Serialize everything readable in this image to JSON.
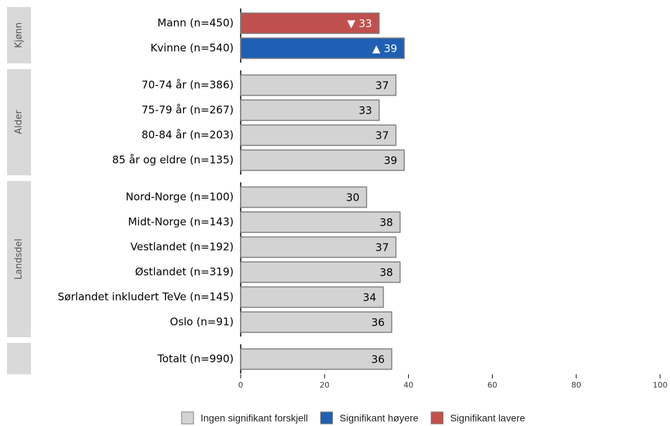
{
  "chart_data": {
    "type": "bar",
    "orientation": "horizontal",
    "groups": [
      {
        "label": "Kjønn",
        "categories": [
          "Mann (n=450)",
          "Kvinne (n=540)"
        ],
        "values": [
          33,
          39
        ],
        "value_labels": [
          "▼ 33",
          "▲ 39"
        ],
        "colors": [
          "#c0504d",
          "#1f5fb4"
        ]
      },
      {
        "label": "Alder",
        "categories": [
          "70-74 år (n=386)",
          "75-79 år (n=267)",
          "80-84 år (n=203)",
          "85 år og eldre (n=135)"
        ],
        "values": [
          37,
          33,
          37,
          39
        ],
        "value_labels": [
          "37",
          "33",
          "37",
          "39"
        ],
        "colors": [
          "#d3d3d3",
          "#d3d3d3",
          "#d3d3d3",
          "#d3d3d3"
        ]
      },
      {
        "label": "Landsdel",
        "categories": [
          "Nord-Norge (n=100)",
          "Midt-Norge (n=143)",
          "Vestlandet (n=192)",
          "Østlandet (n=319)",
          "Sørlandet inkludert TeVe (n=145)",
          "Oslo (n=91)"
        ],
        "values": [
          30,
          38,
          37,
          38,
          34,
          36
        ],
        "value_labels": [
          "30",
          "38",
          "37",
          "38",
          "34",
          "36"
        ],
        "colors": [
          "#d3d3d3",
          "#d3d3d3",
          "#d3d3d3",
          "#d3d3d3",
          "#d3d3d3",
          "#d3d3d3"
        ]
      },
      {
        "label": null,
        "categories": [
          "Totalt (n=990)"
        ],
        "values": [
          36
        ],
        "value_labels": [
          "36"
        ],
        "colors": [
          "#d3d3d3"
        ]
      }
    ],
    "xlim": [
      0,
      100
    ],
    "xticks": [
      0,
      20,
      40,
      60,
      80,
      100
    ],
    "legend": [
      {
        "name": "Ingen signifikant forskjell",
        "color": "#d3d3d3"
      },
      {
        "name": "Signifikant høyere",
        "color": "#1f5fb4"
      },
      {
        "name": "Signifikant lavere",
        "color": "#c0504d"
      }
    ]
  }
}
